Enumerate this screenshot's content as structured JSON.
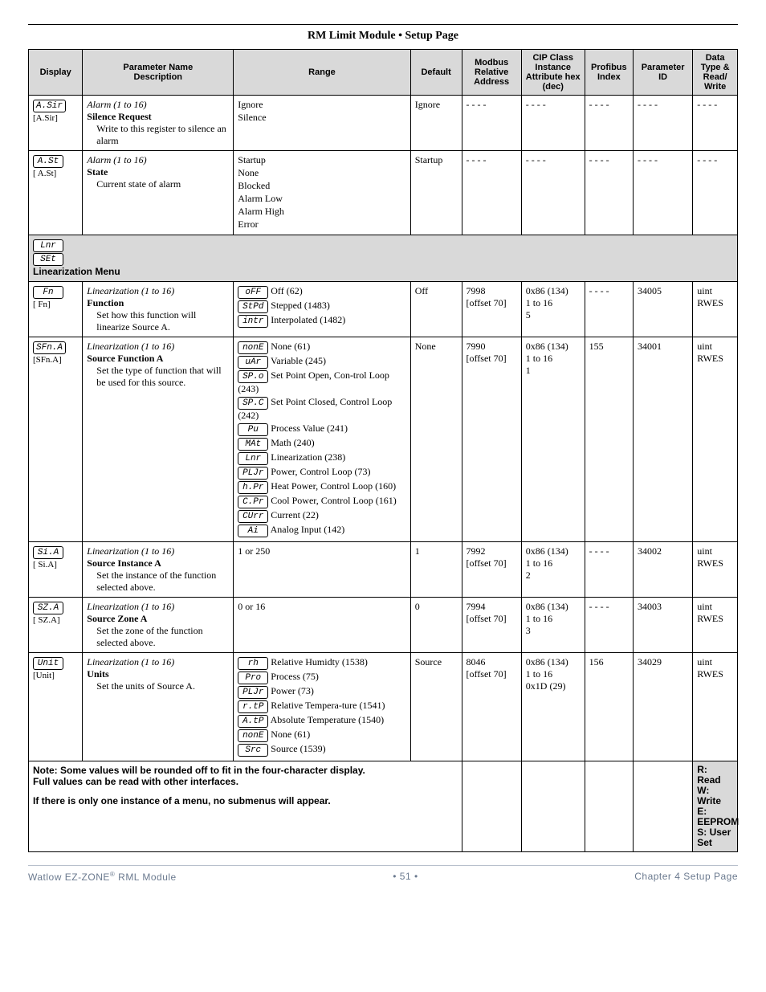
{
  "header": {
    "title": "RM Limit Module    •    Setup Page"
  },
  "columns": {
    "display": "Display",
    "param": "Parameter Name\nDescription",
    "range": "Range",
    "default": "Default",
    "modbus": "Modbus Relative Address",
    "cip": "CIP Class Instance Attribute hex (dec)",
    "profibus": "Profibus Index",
    "pid": "Parameter ID",
    "dtype": "Data Type & Read/ Write"
  },
  "rows": [
    {
      "disp_box": "A.Sir",
      "disp_sub": "[A.Sir]",
      "param_ital": "Alarm (1 to 16)",
      "param_bold": "Silence Request",
      "param_desc": "Write to this register to silence an alarm",
      "range_plain": [
        "Ignore",
        "Silence"
      ],
      "default": "Ignore",
      "modbus": "- - - -",
      "cip": "- - - -",
      "profibus": "- - - -",
      "pid": "- - - -",
      "dtype": "- - - -"
    },
    {
      "disp_box": "A.St",
      "disp_sub": "[ A.St]",
      "param_ital": "Alarm (1 to 16)",
      "param_bold": "State",
      "param_desc": "Current state of alarm",
      "range_plain": [
        "Startup",
        "None",
        "Blocked",
        "Alarm Low",
        "Alarm High",
        "Error"
      ],
      "default": "Startup",
      "modbus": "- - - -",
      "cip": "- - - -",
      "profibus": "- - - -",
      "pid": "- - - -",
      "dtype": "- - - -"
    }
  ],
  "menu": {
    "box1": "Lnr",
    "box2": "SEt",
    "title": "Linearization Menu"
  },
  "rows2": [
    {
      "disp_box": "Fn",
      "disp_sub": "[  Fn]",
      "param_ital": "Linearization (1 to 16)",
      "param_bold": "Function",
      "param_desc": "Set how this function will linearize Source A.",
      "range_boxed": [
        {
          "b": "oFF",
          "t": " Off (62)"
        },
        {
          "b": "StPd",
          "t": " Stepped (1483)"
        },
        {
          "b": "intr",
          "t": " Interpolated (1482)"
        }
      ],
      "default": "Off",
      "modbus": "7998\n[offset 70]",
      "cip": "0x86 (134)\n1 to 16\n5",
      "profibus": "- - - -",
      "pid": "34005",
      "dtype": "uint\nRWES"
    },
    {
      "disp_box": "SFn.A",
      "disp_sub": "[SFn.A]",
      "param_ital": "Linearization (1 to 16)",
      "param_bold": "Source Function A",
      "param_desc": "Set the type of function that will be used for this source.",
      "range_boxed": [
        {
          "b": "nonE",
          "t": " None (61)"
        },
        {
          "b": "uAr",
          "t": " Variable (245)"
        },
        {
          "b": "SP.o",
          "t": " Set Point Open, Con-trol Loop (243)"
        },
        {
          "b": "SP.C",
          "t": " Set Point Closed, Control Loop (242)"
        },
        {
          "b": "Pu",
          "t": " Process Value (241)"
        },
        {
          "b": "MAt",
          "t": " Math (240)"
        },
        {
          "b": "Lnr",
          "t": " Linearization (238)"
        },
        {
          "b": "PLJr",
          "t": " Power, Control Loop (73)"
        },
        {
          "b": "h.Pr",
          "t": " Heat Power, Control Loop (160)"
        },
        {
          "b": "C.Pr",
          "t": " Cool Power, Control Loop (161)"
        },
        {
          "b": "CUrr",
          "t": " Current (22)"
        },
        {
          "b": "Ai",
          "t": " Analog Input (142)"
        }
      ],
      "default": "None",
      "modbus": "7990\n[offset 70]",
      "cip": "0x86 (134)\n1 to 16\n1",
      "profibus": "155",
      "pid": "34001",
      "dtype": "uint\nRWES"
    },
    {
      "disp_box": "Si.A",
      "disp_sub": "[ Si.A]",
      "param_ital": "Linearization (1 to 16)",
      "param_bold": "Source Instance A",
      "param_desc": "Set the instance of the function selected above.",
      "range_plain": [
        "1 or 250"
      ],
      "default": "1",
      "modbus": "7992\n[offset 70]",
      "cip": "0x86 (134)\n1 to 16\n2",
      "profibus": "- - - -",
      "pid": "34002",
      "dtype": "uint\nRWES"
    },
    {
      "disp_box": "SZ.A",
      "disp_sub": "[ SZ.A]",
      "param_ital": "Linearization (1 to 16)",
      "param_bold": "Source Zone A",
      "param_desc": "Set the zone of the function selected above.",
      "range_plain": [
        "0 or 16"
      ],
      "default": "0",
      "modbus": "7994\n[offset 70]",
      "cip": "0x86 (134)\n1 to 16\n3",
      "profibus": "- - - -",
      "pid": "34003",
      "dtype": "uint\nRWES"
    },
    {
      "disp_box": "Unit",
      "disp_sub": "[Unit]",
      "param_ital": "Linearization (1 to 16)",
      "param_bold": "Units",
      "param_desc": "Set the units of Source A.",
      "range_boxed": [
        {
          "b": "rh",
          "t": " Relative Humidty (1538)"
        },
        {
          "b": "Pro",
          "t": " Process (75)"
        },
        {
          "b": "PLJr",
          "t": " Power (73)"
        },
        {
          "b": "r.tP",
          "t": "  Relative Tempera-ture (1541)"
        },
        {
          "b": "A.tP",
          "t": " Absolute Temperature (1540)"
        },
        {
          "b": "nonE",
          "t": " None (61)"
        },
        {
          "b": "Src",
          "t": " Source (1539)"
        }
      ],
      "default": "Source",
      "modbus": "8046\n[offset 70]",
      "cip": "0x86 (134)\n1 to 16\n0x1D (29)",
      "profibus": "156",
      "pid": "34029",
      "dtype": "uint\nRWES"
    }
  ],
  "note": {
    "line1": "Note: Some values will be rounded off to fit in the four-character display.",
    "line2": "Full values can be read with other interfaces.",
    "line3": "If there is only one instance of a menu, no submenus will appear."
  },
  "legend": [
    "R: Read",
    "W: Write",
    "E: EEPROM",
    "S: User Set"
  ],
  "footer": {
    "left": "Watlow EZ-ZONE® RML Module",
    "center": "•  51  •",
    "right": "Chapter 4 Setup Page"
  }
}
